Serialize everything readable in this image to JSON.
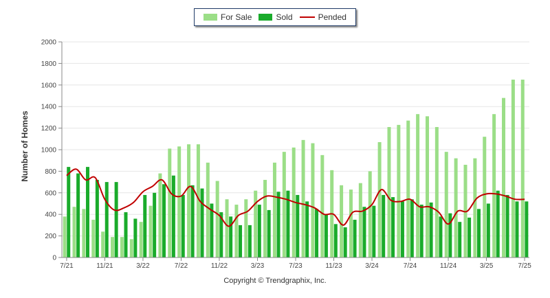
{
  "chart_data": {
    "type": "bar",
    "title": "",
    "xlabel": "",
    "ylabel": "Number of Homes",
    "ylim": [
      0,
      2000
    ],
    "y_ticks": [
      0,
      200,
      400,
      600,
      800,
      1000,
      1200,
      1400,
      1600,
      1800,
      2000
    ],
    "x_tick_labels": [
      {
        "index": 0,
        "label": "7/21"
      },
      {
        "index": 4,
        "label": "11/21"
      },
      {
        "index": 8,
        "label": "3/22"
      },
      {
        "index": 12,
        "label": "7/22"
      },
      {
        "index": 16,
        "label": "11/22"
      },
      {
        "index": 20,
        "label": "3/23"
      },
      {
        "index": 24,
        "label": "7/23"
      },
      {
        "index": 28,
        "label": "11/23"
      },
      {
        "index": 32,
        "label": "3/24"
      },
      {
        "index": 36,
        "label": "7/24"
      },
      {
        "index": 40,
        "label": "11/24"
      },
      {
        "index": 44,
        "label": "3/25"
      },
      {
        "index": 48,
        "label": "7/25"
      }
    ],
    "legend_position": "top-center",
    "grid": true,
    "series": [
      {
        "name": "For Sale",
        "type": "bar",
        "color": "#9bde87",
        "values": [
          380,
          470,
          450,
          350,
          240,
          190,
          190,
          170,
          330,
          480,
          780,
          1010,
          1030,
          1050,
          1050,
          880,
          710,
          540,
          490,
          540,
          620,
          720,
          880,
          980,
          1020,
          1090,
          1060,
          950,
          810,
          670,
          630,
          690,
          800,
          1070,
          1210,
          1230,
          1270,
          1330,
          1310,
          1210,
          980,
          920,
          860,
          920,
          1120,
          1330,
          1480,
          1650,
          1650
        ]
      },
      {
        "name": "Sold",
        "type": "bar",
        "color": "#1aab2b",
        "values": [
          840,
          780,
          840,
          720,
          700,
          700,
          420,
          360,
          580,
          600,
          680,
          760,
          580,
          670,
          640,
          500,
          420,
          380,
          300,
          300,
          490,
          440,
          610,
          620,
          580,
          520,
          450,
          400,
          310,
          280,
          350,
          470,
          480,
          580,
          560,
          520,
          540,
          490,
          510,
          380,
          410,
          330,
          370,
          450,
          500,
          620,
          580,
          520,
          520
        ]
      },
      {
        "name": "Pended",
        "type": "line",
        "color": "#c00000",
        "values": [
          760,
          820,
          720,
          740,
          540,
          440,
          460,
          510,
          610,
          660,
          720,
          590,
          570,
          660,
          520,
          450,
          390,
          290,
          390,
          430,
          520,
          570,
          560,
          540,
          510,
          490,
          460,
          400,
          400,
          300,
          420,
          430,
          490,
          630,
          530,
          520,
          540,
          470,
          470,
          420,
          310,
          430,
          430,
          550,
          590,
          590,
          570,
          540,
          540
        ]
      }
    ]
  },
  "legend": {
    "for_sale": "For Sale",
    "sold": "Sold",
    "pended": "Pended"
  },
  "footer": {
    "copyright": "Copyright © Trendgraphix, Inc."
  }
}
